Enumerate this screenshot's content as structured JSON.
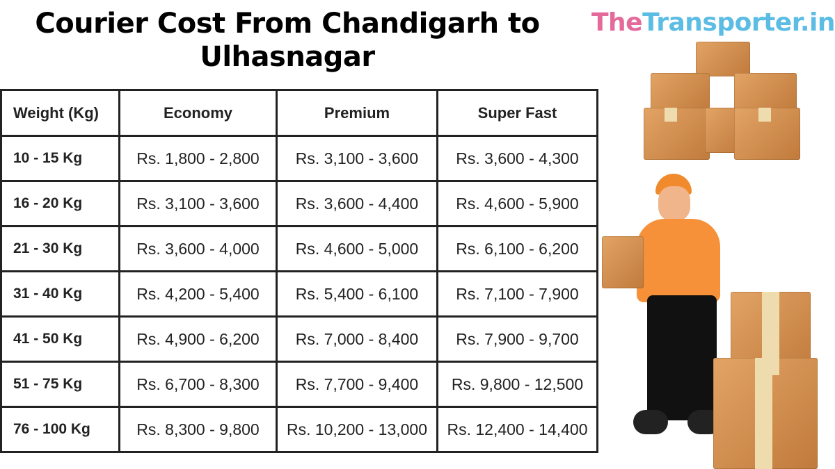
{
  "title": "Courier Cost From Chandigarh to Ulhasnagar",
  "logo": {
    "part1": "The",
    "part2": "Transporter.in",
    "color1": "#e56a9c",
    "color2": "#5bbde4"
  },
  "table": {
    "headers": [
      "Weight (Kg)",
      "Economy",
      "Premium",
      "Super Fast"
    ],
    "rows": [
      [
        "10 - 15 Kg",
        "Rs. 1,800 - 2,800",
        "Rs. 3,100 - 3,600",
        "Rs. 3,600 - 4,300"
      ],
      [
        "16 - 20 Kg",
        "Rs. 3,100 - 3,600",
        "Rs. 3,600 - 4,400",
        "Rs. 4,600 - 5,900"
      ],
      [
        "21 - 30 Kg",
        "Rs. 3,600 - 4,000",
        "Rs. 4,600 - 5,000",
        "Rs. 6,100 - 6,200"
      ],
      [
        "31 - 40 Kg",
        "Rs. 4,200 - 5,400",
        "Rs. 5,400 - 6,100",
        "Rs. 7,100 - 7,900"
      ],
      [
        "41 - 50 Kg",
        "Rs. 4,900 - 6,200",
        "Rs. 7,000 - 8,400",
        "Rs. 7,900 - 9,700"
      ],
      [
        "51 - 75 Kg",
        "Rs. 6,700 - 8,300",
        "Rs. 7,700 - 9,400",
        "Rs. 9,800 - 12,500"
      ],
      [
        "76 - 100 Kg",
        "Rs. 8,300 - 9,800",
        "Rs. 10,200 - 13,000",
        "Rs. 12,400 - 14,400"
      ]
    ]
  },
  "illustrations": [
    "box-stack-image",
    "delivery-person-image"
  ]
}
